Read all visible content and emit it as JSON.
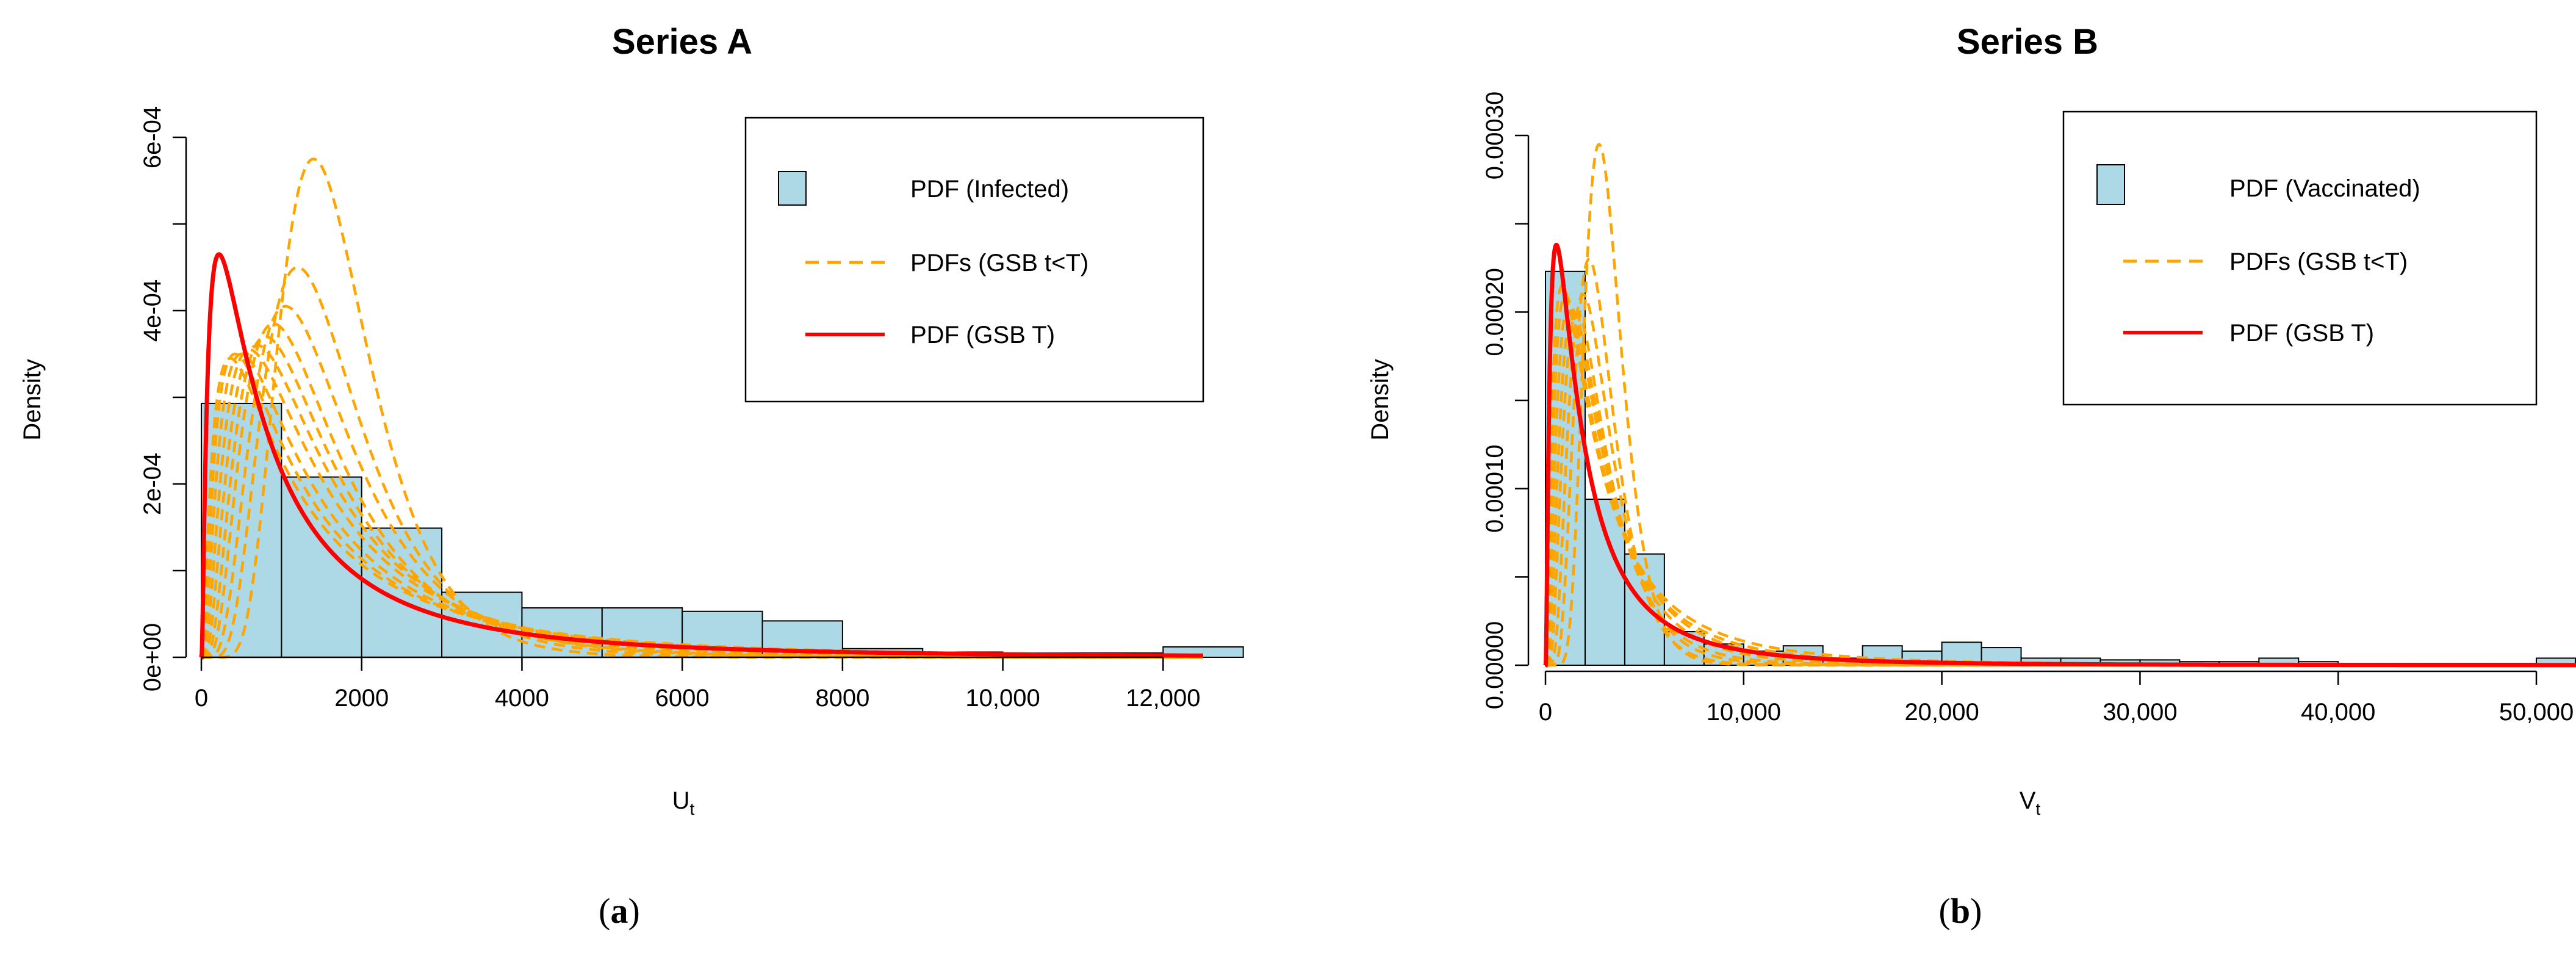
{
  "chart_data": [
    {
      "type": "histogram+line",
      "title": "Series A",
      "caption": "a",
      "xlabel": "U",
      "xlabel_sub": "t",
      "ylabel": "Density",
      "xlim": [
        0,
        12500
      ],
      "ylim": [
        0,
        0.0006
      ],
      "x_ticks": [
        0,
        2000,
        4000,
        6000,
        8000,
        10000,
        12000
      ],
      "x_tick_labels": [
        "0",
        "2000",
        "4000",
        "6000",
        "8000",
        "10,000",
        "12,000"
      ],
      "y_ticks": [
        0,
        0.0001,
        0.0002,
        0.0003,
        0.0004,
        0.0005,
        0.0006
      ],
      "y_tick_labels": [
        "0e+00",
        "",
        "2e-04",
        "",
        "4e-04",
        "",
        "6e-04"
      ],
      "histogram": {
        "name": "PDF (Infected)",
        "color": "#add8e6",
        "edges": [
          0,
          1000,
          2000,
          3000,
          4000,
          5000,
          6000,
          7000,
          8000,
          9000,
          10000,
          11000,
          12000,
          13000
        ],
        "densities": [
          0.000293,
          0.000208,
          0.000149,
          7.5e-05,
          5.7e-05,
          5.7e-05,
          5.3e-05,
          4.2e-05,
          1e-05,
          6e-06,
          5e-06,
          5e-06,
          1.2e-05
        ]
      },
      "family_curves": {
        "name": "PDFs (GSB t<T)",
        "color": "#ffa500",
        "shape": "lognormal",
        "params": [
          {
            "mode": 1400,
            "peak": 0.000575,
            "sigma": 0.4
          },
          {
            "mode": 1200,
            "peak": 0.00045,
            "sigma": 0.5
          },
          {
            "mode": 1050,
            "peak": 0.000405,
            "sigma": 0.58
          },
          {
            "mode": 900,
            "peak": 0.000385,
            "sigma": 0.65
          },
          {
            "mode": 800,
            "peak": 0.00037,
            "sigma": 0.72
          },
          {
            "mode": 700,
            "peak": 0.00036,
            "sigma": 0.8
          },
          {
            "mode": 600,
            "peak": 0.000355,
            "sigma": 0.88
          },
          {
            "mode": 500,
            "peak": 0.00035,
            "sigma": 0.96
          },
          {
            "mode": 420,
            "peak": 0.00035,
            "sigma": 1.04
          },
          {
            "mode": 360,
            "peak": 0.000345,
            "sigma": 1.12
          }
        ]
      },
      "final_curve": {
        "name": "PDF (GSB T)",
        "color": "#ff0000",
        "shape": "lognormal",
        "mode": 220,
        "peak": 0.000465,
        "sigma": 1.22
      },
      "legend_position": "top-right"
    },
    {
      "type": "histogram+line",
      "title": "Series B",
      "caption": "b",
      "xlabel": "V",
      "xlabel_sub": "t",
      "ylabel": "Density",
      "xlim": [
        0,
        52000
      ],
      "ylim": [
        0,
        0.0003
      ],
      "x_ticks": [
        0,
        10000,
        20000,
        30000,
        40000,
        50000
      ],
      "x_tick_labels": [
        "0",
        "10,000",
        "20,000",
        "30,000",
        "40,000",
        "50,000"
      ],
      "y_ticks": [
        0,
        5e-05,
        0.0001,
        0.00015,
        0.0002,
        0.00025,
        0.0003
      ],
      "y_tick_labels": [
        "0.00000",
        "",
        "0.00010",
        "",
        "0.00020",
        "",
        "0.00030"
      ],
      "histogram": {
        "name": "PDF (Vaccinated)",
        "color": "#add8e6",
        "edges": [
          0,
          2000,
          4000,
          6000,
          8000,
          10000,
          12000,
          14000,
          16000,
          18000,
          20000,
          22000,
          24000,
          26000,
          28000,
          30000,
          32000,
          34000,
          36000,
          38000,
          40000,
          42000,
          44000,
          46000,
          48000,
          50000,
          52000
        ],
        "densities": [
          0.000223,
          9.4e-05,
          6.3e-05,
          1.9e-05,
          1.2e-05,
          8e-06,
          1.1e-05,
          4e-06,
          1.1e-05,
          8e-06,
          1.3e-05,
          1e-05,
          4e-06,
          4e-06,
          3e-06,
          3e-06,
          2e-06,
          2e-06,
          4e-06,
          2e-06,
          1e-06,
          1e-06,
          1e-06,
          1e-06,
          1e-06,
          4e-06
        ]
      },
      "family_curves": {
        "name": "PDFs (GSB t<T)",
        "color": "#ffa500",
        "shape": "lognormal",
        "params": [
          {
            "mode": 2700,
            "peak": 0.000295,
            "sigma": 0.35
          },
          {
            "mode": 2200,
            "peak": 0.00023,
            "sigma": 0.45
          },
          {
            "mode": 1900,
            "peak": 0.00021,
            "sigma": 0.55
          },
          {
            "mode": 1600,
            "peak": 0.0002,
            "sigma": 0.65
          },
          {
            "mode": 1400,
            "peak": 0.0002,
            "sigma": 0.75
          },
          {
            "mode": 1200,
            "peak": 0.000205,
            "sigma": 0.85
          },
          {
            "mode": 1000,
            "peak": 0.00021,
            "sigma": 0.95
          },
          {
            "mode": 850,
            "peak": 0.000215,
            "sigma": 1.05
          }
        ]
      },
      "final_curve": {
        "name": "PDF (GSB T)",
        "color": "#ff0000",
        "shape": "lognormal",
        "mode": 550,
        "peak": 0.000238,
        "sigma": 1.12
      },
      "legend_position": "top-right"
    }
  ]
}
